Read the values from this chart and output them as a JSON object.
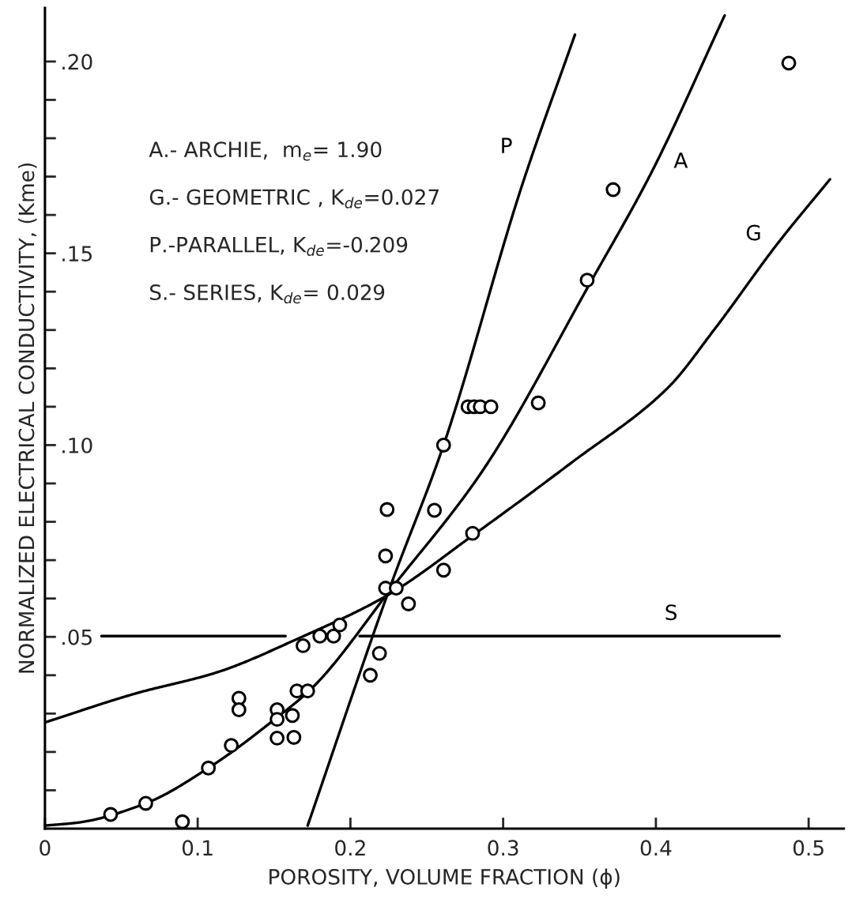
{
  "chart_data": {
    "type": "scatter",
    "xlabel": "POROSITY, VOLUME FRACTION (ϕ)",
    "ylabel": "NORMALIZED ELECTRICAL CONDUCTIVITY, (Kme)",
    "xlim": [
      0,
      0.523
    ],
    "ylim": [
      0,
      0.214
    ],
    "xticks": [
      {
        "value": 0,
        "label": "0"
      },
      0.1,
      0.2,
      0.3,
      0.4,
      0.5
    ],
    "yticks": [
      {
        "value": 0.01,
        "label": null
      },
      {
        "value": 0.02,
        "label": null
      },
      {
        "value": 0.03,
        "label": null
      },
      {
        "value": 0.04,
        "label": null
      },
      {
        "value": 0.05,
        "label": ".05"
      },
      {
        "value": 0.06,
        "label": null
      },
      {
        "value": 0.07,
        "label": null
      },
      {
        "value": 0.08,
        "label": null
      },
      {
        "value": 0.09,
        "label": null
      },
      {
        "value": 0.1,
        "label": ".10"
      },
      {
        "value": 0.11,
        "label": null
      },
      {
        "value": 0.12,
        "label": null
      },
      {
        "value": 0.13,
        "label": null
      },
      {
        "value": 0.14,
        "label": null
      },
      {
        "value": 0.15,
        "label": ".15"
      },
      {
        "value": 0.16,
        "label": null
      },
      {
        "value": 0.17,
        "label": null
      },
      {
        "value": 0.18,
        "label": null
      },
      {
        "value": 0.19,
        "label": null
      },
      {
        "value": 0.2,
        "label": ".20"
      }
    ],
    "grid": false,
    "series": [
      {
        "marker": "circle",
        "color": "#000000",
        "x": [
          0.043,
          0.066,
          0.09,
          0.107,
          0.122,
          0.127,
          0.127,
          0.152,
          0.152,
          0.152,
          0.162,
          0.163,
          0.165,
          0.172,
          0.169,
          0.18,
          0.189,
          0.193,
          0.213,
          0.219,
          0.223,
          0.224,
          0.223,
          0.23,
          0.238,
          0.255,
          0.261,
          0.261,
          0.28,
          0.277,
          0.281,
          0.285,
          0.292,
          0.323,
          0.355,
          0.372,
          0.487
        ],
        "values": [
          0.0037,
          0.0066,
          0.0018,
          0.0158,
          0.0217,
          0.034,
          0.031,
          0.031,
          0.0285,
          0.0236,
          0.0295,
          0.0238,
          0.0359,
          0.0359,
          0.0477,
          0.0502,
          0.0502,
          0.0531,
          0.04,
          0.0457,
          0.0711,
          0.0832,
          0.0627,
          0.0627,
          0.0586,
          0.083,
          0.1,
          0.0674,
          0.077,
          0.11,
          0.11,
          0.11,
          0.11,
          0.111,
          0.143,
          0.1666,
          0.1996
        ]
      },
      {
        "type": "line",
        "name": "P",
        "marker": "none",
        "line_style": "solid",
        "color": "#000000",
        "x": [
          0.172,
          0.226,
          0.261,
          0.3126,
          0.347
        ],
        "values": [
          0.0008,
          0.063,
          0.1,
          0.168,
          0.207
        ]
      },
      {
        "type": "line",
        "name": "A",
        "marker": "none",
        "line_style": "solid",
        "color": "#000000",
        "x": [
          0.0,
          0.022,
          0.066,
          0.107,
          0.152,
          0.175,
          0.227,
          0.286,
          0.358,
          0.397,
          0.445
        ],
        "values": [
          0.0008,
          0.0016,
          0.0066,
          0.0158,
          0.029,
          0.0367,
          0.0627,
          0.093,
          0.143,
          0.171,
          0.212
        ]
      },
      {
        "type": "line",
        "name": "G",
        "marker": "none",
        "line_style": "solid",
        "color": "#000000",
        "x": [
          0.0,
          0.059,
          0.113,
          0.166,
          0.2236,
          0.282,
          0.345,
          0.408,
          0.438,
          0.48,
          0.514
        ],
        "values": [
          0.0277,
          0.0352,
          0.0408,
          0.0496,
          0.0607,
          0.077,
          0.0955,
          0.115,
          0.13,
          0.1527,
          0.1693
        ]
      },
      {
        "type": "line",
        "name": "S",
        "marker": "none",
        "line_style": "solid",
        "color": "#000000",
        "x": [
          0.037,
          0.1575,
          0.18,
          0.206,
          0.481
        ],
        "values": [
          0.0502,
          0.0502,
          null,
          0.0502,
          0.0502
        ]
      }
    ],
    "annotations": [
      "A.- ARCHIE,  m$_{e}$= 1.90",
      "G.- GEOMETRIC , K$_{de}$=0.027",
      "P.-PARALLEL, K$_{de}$=-0.209",
      "S.- SERIES, K$_{de}$= 0.029"
    ]
  }
}
